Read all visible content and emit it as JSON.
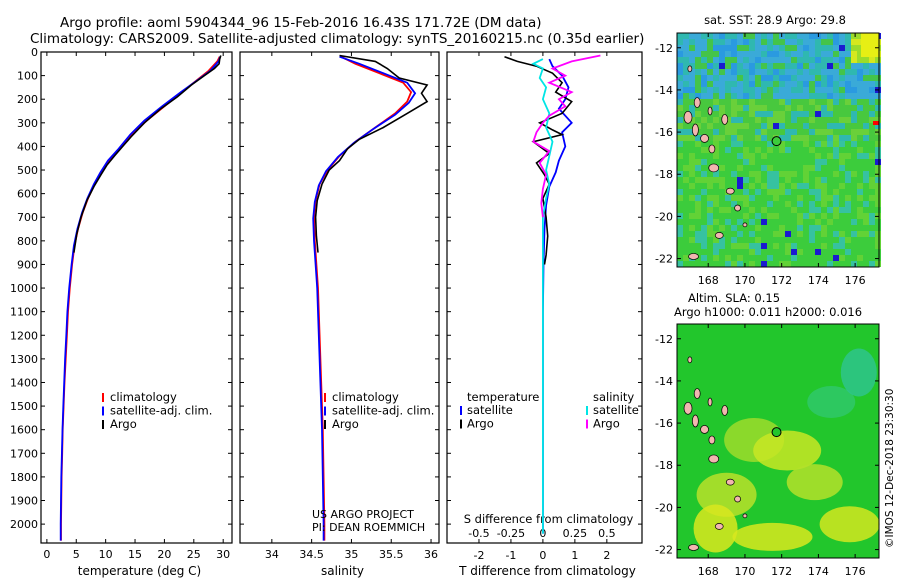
{
  "header": {
    "title": "Argo profile: aoml 5904344_96 15-Feb-2016 16.43S 171.72E (DM data)",
    "subtitle": "Climatology: CARS2009. Satellite-adjusted climatology: synTS_20160215.nc (0.35d earlier)"
  },
  "colors": {
    "climatology": "#ff0000",
    "satellite": "#0000ff",
    "argo": "#000000",
    "sat_salinity": "#00e5e5",
    "argo_salinity": "#ff00ff"
  },
  "depth_ticks": [
    "0",
    "100",
    "200",
    "300",
    "400",
    "500",
    "600",
    "700",
    "800",
    "900",
    "1000",
    "1100",
    "1200",
    "1300",
    "1400",
    "1500",
    "1600",
    "1700",
    "1800",
    "1900",
    "2000"
  ],
  "chart_data": [
    {
      "type": "line",
      "id": "temperature",
      "xlabel": "temperature (deg C)",
      "xlim": [
        -1,
        31.5
      ],
      "ylim": [
        2080,
        0
      ],
      "x_ticks": [
        "0",
        "5",
        "10",
        "15",
        "20",
        "25",
        "30"
      ],
      "x_tick_values": [
        0,
        5,
        10,
        15,
        20,
        25,
        30
      ],
      "legend": [
        "climatology",
        "satellite-adj. clim.",
        "Argo"
      ],
      "series": [
        {
          "name": "climatology",
          "color": "#ff0000",
          "points": [
            [
              29.4,
              20
            ],
            [
              29.0,
              40
            ],
            [
              27.5,
              80
            ],
            [
              25.5,
              120
            ],
            [
              23,
              170
            ],
            [
              20,
              230
            ],
            [
              17,
              290
            ],
            [
              14.5,
              350
            ],
            [
              12.5,
              410
            ],
            [
              10.6,
              460
            ],
            [
              9.3,
              510
            ],
            [
              8.1,
              560
            ],
            [
              7,
              620
            ],
            [
              6.1,
              680
            ],
            [
              5.3,
              750
            ],
            [
              4.7,
              820
            ],
            [
              4.3,
              900
            ],
            [
              3.9,
              1000
            ],
            [
              3.6,
              1100
            ],
            [
              3.4,
              1200
            ],
            [
              3.2,
              1300
            ],
            [
              3.0,
              1400
            ],
            [
              2.85,
              1500
            ],
            [
              2.7,
              1600
            ],
            [
              2.6,
              1700
            ],
            [
              2.5,
              1800
            ],
            [
              2.45,
              1900
            ],
            [
              2.4,
              2000
            ],
            [
              2.4,
              2070
            ]
          ]
        },
        {
          "name": "satellite-adj. clim.",
          "color": "#0000ff",
          "points": [
            [
              29.5,
              20
            ],
            [
              29.2,
              40
            ],
            [
              27.8,
              80
            ],
            [
              25.6,
              120
            ],
            [
              22.8,
              170
            ],
            [
              19.6,
              230
            ],
            [
              16.6,
              290
            ],
            [
              14.2,
              350
            ],
            [
              12.2,
              410
            ],
            [
              10.4,
              460
            ],
            [
              9.1,
              510
            ],
            [
              8,
              560
            ],
            [
              6.9,
              620
            ],
            [
              6,
              680
            ],
            [
              5.2,
              750
            ],
            [
              4.6,
              820
            ],
            [
              4.2,
              900
            ],
            [
              3.8,
              1000
            ],
            [
              3.5,
              1100
            ],
            [
              3.3,
              1200
            ],
            [
              3.1,
              1300
            ],
            [
              2.95,
              1400
            ],
            [
              2.8,
              1500
            ],
            [
              2.65,
              1600
            ],
            [
              2.55,
              1700
            ],
            [
              2.45,
              1800
            ],
            [
              2.4,
              1900
            ],
            [
              2.35,
              2000
            ],
            [
              2.35,
              2070
            ]
          ]
        },
        {
          "name": "Argo",
          "color": "#000000",
          "points": [
            [
              29.6,
              15
            ],
            [
              29.4,
              30
            ],
            [
              29.3,
              50
            ],
            [
              28.5,
              70
            ],
            [
              26.8,
              100
            ],
            [
              24.6,
              140
            ],
            [
              22.2,
              190
            ],
            [
              19.4,
              240
            ],
            [
              16.6,
              300
            ],
            [
              14.3,
              360
            ],
            [
              12.9,
              400
            ],
            [
              11.5,
              440
            ],
            [
              10.2,
              480
            ],
            [
              9.2,
              520
            ],
            [
              8,
              570
            ],
            [
              6.8,
              630
            ],
            [
              5.8,
              700
            ],
            [
              5.1,
              770
            ],
            [
              4.6,
              850
            ]
          ]
        }
      ]
    },
    {
      "type": "line",
      "id": "salinity",
      "xlabel": "salinity",
      "xlim": [
        33.6,
        36.1
      ],
      "ylim": [
        2080,
        0
      ],
      "x_ticks": [
        "34",
        "34.5",
        "35",
        "35.5",
        "36"
      ],
      "x_tick_values": [
        34,
        34.5,
        35,
        35.5,
        36
      ],
      "legend": [
        "climatology",
        "satellite-adj. clim.",
        "Argo"
      ],
      "annotations": [
        "US ARGO PROJECT",
        "PI: DEAN ROEMMICH"
      ],
      "series": [
        {
          "name": "climatology",
          "color": "#ff0000",
          "points": [
            [
              34.87,
              20
            ],
            [
              35.05,
              50
            ],
            [
              35.35,
              90
            ],
            [
              35.65,
              130
            ],
            [
              35.75,
              170
            ],
            [
              35.7,
              210
            ],
            [
              35.55,
              260
            ],
            [
              35.3,
              320
            ],
            [
              35.05,
              380
            ],
            [
              34.85,
              440
            ],
            [
              34.7,
              500
            ],
            [
              34.6,
              560
            ],
            [
              34.55,
              630
            ],
            [
              34.53,
              700
            ],
            [
              34.54,
              800
            ],
            [
              34.56,
              900
            ],
            [
              34.58,
              1000
            ],
            [
              34.6,
              1200
            ],
            [
              34.62,
              1400
            ],
            [
              34.64,
              1600
            ],
            [
              34.65,
              1800
            ],
            [
              34.66,
              2000
            ],
            [
              34.66,
              2070
            ]
          ]
        },
        {
          "name": "satellite-adj. clim.",
          "color": "#0000ff",
          "points": [
            [
              34.85,
              20
            ],
            [
              35.1,
              50
            ],
            [
              35.4,
              90
            ],
            [
              35.7,
              130
            ],
            [
              35.8,
              175
            ],
            [
              35.72,
              215
            ],
            [
              35.55,
              265
            ],
            [
              35.28,
              325
            ],
            [
              35.03,
              385
            ],
            [
              34.83,
              445
            ],
            [
              34.68,
              505
            ],
            [
              34.59,
              565
            ],
            [
              34.54,
              635
            ],
            [
              34.52,
              705
            ],
            [
              34.53,
              800
            ],
            [
              34.55,
              900
            ],
            [
              34.57,
              1000
            ],
            [
              34.59,
              1200
            ],
            [
              34.61,
              1400
            ],
            [
              34.63,
              1600
            ],
            [
              34.64,
              1800
            ],
            [
              34.65,
              2000
            ],
            [
              34.65,
              2070
            ]
          ]
        },
        {
          "name": "Argo",
          "color": "#000000",
          "points": [
            [
              34.85,
              15
            ],
            [
              35.3,
              40
            ],
            [
              35.45,
              70
            ],
            [
              35.6,
              110
            ],
            [
              35.95,
              140
            ],
            [
              35.88,
              175
            ],
            [
              35.95,
              210
            ],
            [
              35.7,
              260
            ],
            [
              35.4,
              320
            ],
            [
              35.1,
              370
            ],
            [
              34.95,
              410
            ],
            [
              34.85,
              460
            ],
            [
              34.72,
              500
            ],
            [
              34.63,
              560
            ],
            [
              34.57,
              630
            ],
            [
              34.55,
              700
            ],
            [
              34.56,
              780
            ],
            [
              34.58,
              850
            ]
          ]
        }
      ]
    },
    {
      "type": "line",
      "id": "difference",
      "xlabel": "T difference from climatology",
      "xlabel2": "S difference from climatology",
      "xlim": [
        -3,
        3.1
      ],
      "ylim": [
        2080,
        0
      ],
      "x_ticks": [
        "-2",
        "-1",
        "0",
        "1",
        "2"
      ],
      "x_tick_values": [
        -2,
        -1,
        0,
        1,
        2
      ],
      "x_ticks2": [
        "-0.5",
        "-0.25",
        "0",
        "0.25",
        "0.5"
      ],
      "x_tick2_values": [
        -0.5,
        -0.25,
        0,
        0.25,
        0.5
      ],
      "legend_temperature_title": "temperature",
      "legend_salinity_title": "salinity",
      "legend_temperature": [
        "satellite",
        "Argo"
      ],
      "legend_salinity": [
        "satellite",
        "Argo"
      ],
      "series": [
        {
          "name": "satellite",
          "color": "#0000ff",
          "points": [
            [
              0.2,
              30
            ],
            [
              0.3,
              60
            ],
            [
              0.6,
              100
            ],
            [
              0.8,
              150
            ],
            [
              0.7,
              200
            ],
            [
              0.5,
              240
            ],
            [
              0.9,
              300
            ],
            [
              0.6,
              340
            ],
            [
              0.7,
              400
            ],
            [
              0.5,
              460
            ],
            [
              0.4,
              510
            ],
            [
              0.2,
              570
            ],
            [
              0.1,
              650
            ],
            [
              0.05,
              750
            ],
            [
              0.02,
              900
            ],
            [
              0.0,
              1100
            ],
            [
              0,
              1500
            ],
            [
              0,
              2040
            ]
          ]
        },
        {
          "name": "Argo",
          "color": "#000000",
          "points": [
            [
              -1.2,
              20
            ],
            [
              -0.8,
              40
            ],
            [
              -0.2,
              60
            ],
            [
              0.3,
              90
            ],
            [
              0.6,
              130
            ],
            [
              0.4,
              170
            ],
            [
              0.9,
              210
            ],
            [
              0.6,
              260
            ],
            [
              -0.1,
              300
            ],
            [
              0.3,
              330
            ],
            [
              0.6,
              350
            ],
            [
              -0.3,
              380
            ],
            [
              0.2,
              430
            ],
            [
              -0.2,
              470
            ],
            [
              0.05,
              520
            ],
            [
              0.2,
              560
            ],
            [
              0.0,
              620
            ],
            [
              0.1,
              700
            ],
            [
              0.15,
              780
            ],
            [
              0.1,
              860
            ],
            [
              0.05,
              900
            ]
          ]
        },
        {
          "name": "satellite (S)",
          "color": "#00e5e5",
          "points": [
            [
              0.0,
              30
            ],
            [
              -0.3,
              50
            ],
            [
              0.0,
              70
            ],
            [
              -0.1,
              110
            ],
            [
              0.1,
              150
            ],
            [
              0.0,
              200
            ],
            [
              0.2,
              260
            ],
            [
              0.1,
              320
            ],
            [
              0.3,
              380
            ],
            [
              0.2,
              440
            ],
            [
              0.1,
              500
            ],
            [
              0.2,
              560
            ],
            [
              0.1,
              620
            ],
            [
              0.0,
              700
            ],
            [
              0.0,
              800
            ],
            [
              0.0,
              1000
            ],
            [
              0,
              1500
            ],
            [
              0,
              2040
            ]
          ]
        },
        {
          "name": "Argo (S)",
          "color": "#ff00ff",
          "points": [
            [
              1.8,
              15
            ],
            [
              0.9,
              40
            ],
            [
              0.3,
              70
            ],
            [
              0.7,
              100
            ],
            [
              0.2,
              130
            ],
            [
              0.9,
              170
            ],
            [
              0.5,
              200
            ],
            [
              0.7,
              230
            ],
            [
              0.2,
              270
            ],
            [
              0.0,
              300
            ],
            [
              -0.2,
              340
            ],
            [
              -0.3,
              380
            ],
            [
              0.2,
              420
            ],
            [
              -0.1,
              470
            ],
            [
              0.1,
              520
            ],
            [
              0.0,
              580
            ],
            [
              -0.05,
              640
            ],
            [
              0.0,
              700
            ]
          ]
        }
      ]
    }
  ],
  "maps": [
    {
      "id": "sst-map",
      "title": "sat. SST: 28.9 Argo: 29.8",
      "lat_ticks": [
        "-12",
        "-14",
        "-16",
        "-18",
        "-20",
        "-22"
      ],
      "lon_ticks": [
        "168",
        "170",
        "172",
        "174",
        "176"
      ]
    },
    {
      "id": "sla-map",
      "title": "Altim. SLA: 0.15",
      "title2": "Argo h1000: 0.011 h2000: 0.016",
      "lat_ticks": [
        "-12",
        "-14",
        "-16",
        "-18",
        "-20",
        "-22"
      ],
      "lon_ticks": [
        "168",
        "170",
        "172",
        "174",
        "176"
      ]
    }
  ],
  "credit": "©IMOS 12-Dec-2018 23:30:30"
}
